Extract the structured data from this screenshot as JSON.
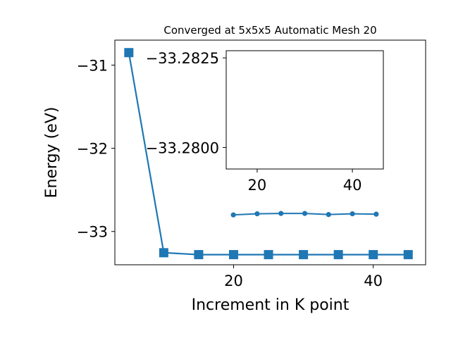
{
  "chart_data": [
    {
      "type": "line",
      "title": "Converged at 5x5x5 Automatic Mesh 20",
      "xlabel": "Increment in K point",
      "ylabel": "Energy (eV)",
      "x": [
        5,
        10,
        15,
        20,
        25,
        30,
        35,
        40,
        45
      ],
      "series": [
        {
          "values": [
            -30.85,
            -33.255,
            -33.2781,
            -33.2782,
            -33.2782,
            -33.2782,
            -33.2781,
            -33.2782,
            -33.2782
          ],
          "color": "#1f77b4",
          "marker": "square"
        }
      ],
      "xlim": [
        3,
        47.5
      ],
      "ylim": [
        -33.4,
        -30.7
      ],
      "xticks": [
        20,
        40
      ],
      "yticks": [
        -31,
        -32,
        -33
      ],
      "ytick_labels": [
        "−31",
        "−32",
        "−33"
      ],
      "grid": false,
      "legend": "none"
    },
    {
      "type": "line",
      "title": "",
      "xlabel": "",
      "ylabel": "",
      "x": [
        15,
        20,
        25,
        30,
        35,
        40,
        45
      ],
      "series": [
        {
          "values": [
            -33.27812,
            -33.27815,
            -33.27816,
            -33.27816,
            -33.27813,
            -33.27815,
            -33.27814
          ],
          "color": "#1f77b4",
          "marker": "circle"
        }
      ],
      "xlim": [
        13.5,
        46.5
      ],
      "ylim": [
        -33.2794,
        -33.2827
      ],
      "xticks": [
        20,
        40
      ],
      "yticks": [
        -33.2825,
        -33.28
      ],
      "ytick_labels": [
        "−33.2825",
        "−33.2800"
      ],
      "grid": false,
      "legend": "none"
    }
  ]
}
